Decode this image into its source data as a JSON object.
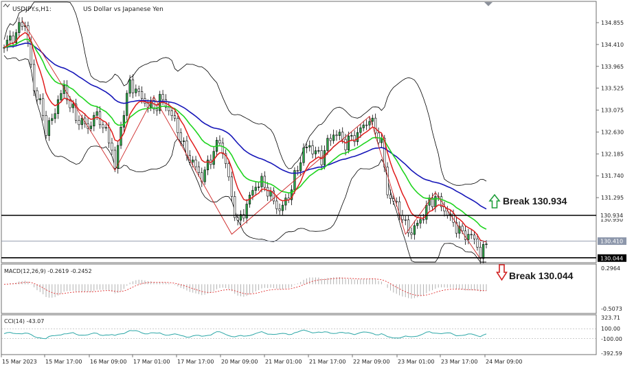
{
  "header": {
    "symbol": "USDJPY.s,H1:",
    "description": "US Dollar vs Japanese Yen",
    "macd_label": "MACD(12,26,9) -0.2619 -0.2452",
    "cci_label": "CCI(14) -43.07"
  },
  "annotations": {
    "break_up": "Break 130.934",
    "break_down": "Break 130.044",
    "upper_level_tag": "130.934",
    "current_price_tag": "130.410",
    "lower_level_tag": "130.044",
    "hidden_tag": "130.950"
  },
  "colors": {
    "up_arrow": "#1f9e3a",
    "down_arrow": "#d11f1f",
    "ma_fast": "#e01b1b",
    "ma_mid": "#1ed41e",
    "ma_slow": "#1515b8",
    "bands": "#000000",
    "zigzag": "#cc2222",
    "macd_hist": "#b0b0b0",
    "macd_signal": "#e03030",
    "cci": "#2aa6a6",
    "level_line": "#000000"
  },
  "chart_data": [
    {
      "type": "candlestick",
      "pane": "price",
      "title": "USDJPY.s,H1: US Dollar vs Japanese Yen",
      "yticks": [
        "134.855",
        "134.410",
        "133.965",
        "133.525",
        "133.075",
        "132.630",
        "132.185",
        "131.740",
        "131.295",
        "130.934",
        "130.410",
        "130.044"
      ],
      "ylim": [
        129.95,
        135.15
      ],
      "xticks": [
        "15 Mar 2023",
        "15 Mar 17:00",
        "16 Mar 09:00",
        "17 Mar 01:00",
        "17 Mar 17:00",
        "20 Mar 09:00",
        "21 Mar 01:00",
        "21 Mar 17:00",
        "22 Mar 09:00",
        "23 Mar 01:00",
        "23 Mar 17:00",
        "24 Mar 09:00"
      ],
      "horizontal_levels": [
        130.934,
        130.044
      ],
      "current_price": 130.41,
      "close_path": [
        [
          0,
          134.35
        ],
        [
          2,
          134.55
        ],
        [
          4,
          134.6
        ],
        [
          6,
          134.9
        ],
        [
          7,
          134.8
        ],
        [
          9,
          134.0
        ],
        [
          10,
          133.5
        ],
        [
          12,
          133.2
        ],
        [
          14,
          132.7
        ],
        [
          16,
          132.85
        ],
        [
          18,
          133.3
        ],
        [
          20,
          133.5
        ],
        [
          22,
          133.2
        ],
        [
          24,
          132.9
        ],
        [
          26,
          132.85
        ],
        [
          28,
          132.7
        ],
        [
          30,
          132.95
        ],
        [
          32,
          132.9
        ],
        [
          34,
          132.6
        ],
        [
          36,
          132.3
        ],
        [
          37,
          131.9
        ],
        [
          38,
          132.3
        ],
        [
          40,
          133.1
        ],
        [
          42,
          133.6
        ],
        [
          44,
          133.5
        ],
        [
          46,
          133.3
        ],
        [
          48,
          133.2
        ],
        [
          50,
          133.1
        ],
        [
          52,
          133.3
        ],
        [
          54,
          133.2
        ],
        [
          56,
          132.95
        ],
        [
          58,
          132.7
        ],
        [
          60,
          132.3
        ],
        [
          62,
          132.1
        ],
        [
          64,
          131.9
        ],
        [
          66,
          131.7
        ],
        [
          68,
          131.95
        ],
        [
          70,
          132.25
        ],
        [
          72,
          132.45
        ],
        [
          74,
          132.0
        ],
        [
          76,
          131.3
        ],
        [
          78,
          130.75
        ],
        [
          80,
          131.0
        ],
        [
          82,
          131.3
        ],
        [
          84,
          131.55
        ],
        [
          86,
          131.6
        ],
        [
          88,
          131.45
        ],
        [
          90,
          131.2
        ],
        [
          92,
          131.05
        ],
        [
          94,
          131.2
        ],
        [
          96,
          131.5
        ],
        [
          98,
          131.9
        ],
        [
          100,
          132.25
        ],
        [
          102,
          132.35
        ],
        [
          104,
          132.2
        ],
        [
          106,
          132.1
        ],
        [
          108,
          132.4
        ],
        [
          110,
          132.6
        ],
        [
          112,
          132.55
        ],
        [
          114,
          132.4
        ],
        [
          116,
          132.5
        ],
        [
          118,
          132.6
        ],
        [
          120,
          132.75
        ],
        [
          122,
          132.9
        ],
        [
          124,
          132.65
        ],
        [
          126,
          132.4
        ],
        [
          128,
          131.4
        ],
        [
          130,
          131.2
        ],
        [
          132,
          131.05
        ],
        [
          134,
          130.7
        ],
        [
          136,
          130.6
        ],
        [
          138,
          130.75
        ],
        [
          140,
          130.95
        ],
        [
          142,
          131.2
        ],
        [
          144,
          131.3
        ],
        [
          146,
          131.15
        ],
        [
          148,
          130.95
        ],
        [
          150,
          130.8
        ],
        [
          152,
          130.6
        ],
        [
          154,
          130.55
        ],
        [
          156,
          130.5
        ],
        [
          158,
          130.35
        ],
        [
          159,
          130.1
        ],
        [
          160,
          130.2
        ],
        [
          161,
          130.41
        ]
      ],
      "series": [
        {
          "name": "",
          "role": "moving-average-fast",
          "color": "#e01b1b"
        },
        {
          "name": "",
          "role": "moving-average-mid",
          "color": "#1ed41e"
        },
        {
          "name": "",
          "role": "moving-average-slow",
          "color": "#1515b8"
        },
        {
          "name": "",
          "role": "bollinger-bands",
          "color": "#000000"
        },
        {
          "name": "",
          "role": "zigzag",
          "color": "#cc2222"
        }
      ]
    },
    {
      "type": "bar",
      "pane": "MACD",
      "title": "MACD(12,26,9) -0.2619 -0.2452",
      "yticks": [
        "0.2964",
        "-0.5073"
      ],
      "ylim": [
        -0.56,
        0.34
      ],
      "macd_latest": -0.2619,
      "signal_latest": -0.2452
    },
    {
      "type": "line",
      "pane": "CCI",
      "title": "CCI(14) -43.07",
      "yticks": [
        "323.71",
        "100.00",
        "-100.00",
        "-392.59"
      ],
      "ylim": [
        -392.59,
        323.71
      ],
      "latest": -43.07
    }
  ]
}
